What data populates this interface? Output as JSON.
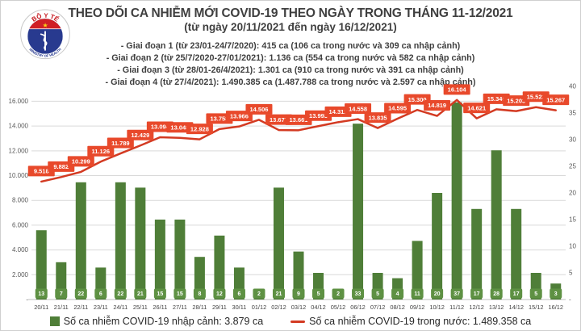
{
  "window": {
    "background": "#ffffff",
    "border_color": "#cfcfcf"
  },
  "logo": {
    "top_text": "BỘ Y TẾ",
    "bottom_text": "MINISTRY OF HEALTH",
    "ring_color": "#c8c8c8",
    "blue": "#283a8f",
    "red": "#d01f26",
    "star_color": "#f7d117"
  },
  "header": {
    "title": "THEO DÕI CA NHIỄM MỚI COVID-19 THEO NGÀY TRONG THÁNG 11-12/2021",
    "subtitle": "(từ ngày 20/11/2021 đến ngày 16/12/2021)",
    "bullets": [
      "- Giai đoạn 1 (từ 23/01-24/7/2020): 415 ca (106 ca trong nước và 309 ca nhập cảnh)",
      "- Giai đoạn 2 (từ 25/7/2020-27/01/2021): 1.136 ca (554 ca trong nước và 582 ca nhập cảnh)",
      "- Giai đoạn 3 (từ 28/01-26/4/2021): 1.301 ca (910 ca trong nước và 391 ca nhập cảnh)",
      "- Giai đoạn 4 (từ 27/4/2021): 1.490.385 ca (1.487.788 ca trong nước và 2.597 ca nhập cảnh)"
    ]
  },
  "chart_data": {
    "type": "combo",
    "title": "THEO DÕI CA NHIỄM MỚI COVID-19 THEO NGÀY TRONG THÁNG 11-12/2021",
    "categories": [
      "20/11",
      "21/11",
      "22/11",
      "23/11",
      "24/11",
      "25/11",
      "26/11",
      "27/11",
      "28/11",
      "29/11",
      "30/11",
      "01/12",
      "02/12",
      "03/12",
      "04/12",
      "05/12",
      "06/12",
      "07/12",
      "08/12",
      "09/12",
      "10/12",
      "11/12",
      "12/12",
      "13/12",
      "14/12",
      "15/12",
      "16/12"
    ],
    "series": [
      {
        "name": "Số ca nhiễm COVID-19 nhập cảnh",
        "type": "bar",
        "axis": "right",
        "color": "#4F7E38",
        "label_bg": "#5E9143",
        "values": [
          13,
          7,
          22,
          6,
          22,
          21,
          15,
          15,
          8,
          12,
          6,
          2,
          21,
          9,
          5,
          2,
          33,
          5,
          4,
          11,
          20,
          37,
          17,
          28,
          17,
          5,
          3
        ]
      },
      {
        "name": "Số ca nhiễm COVID-19 trong nước",
        "type": "line",
        "axis": "left",
        "color": "#D33A22",
        "label_bg": "#E8492B",
        "values": [
          9518,
          9882,
          10299,
          11126,
          11789,
          12429,
          13094,
          13048,
          12928,
          13758,
          13966,
          14506,
          13677,
          13661,
          13993,
          14312,
          14558,
          13835,
          14595,
          15300,
          14819,
          16104,
          14621,
          15349,
          15203,
          15522,
          15267
        ]
      }
    ],
    "left_axis": {
      "tick_labels": [
        "16.000",
        "14.000",
        "12.000",
        "10.000",
        "8.000",
        "6.000",
        "4.000",
        "2.000",
        "-"
      ],
      "max": 16000,
      "step": 2000
    },
    "right_axis": {
      "tick_labels": [
        "40",
        "35",
        "30",
        "25",
        "20",
        "15",
        "10",
        "5",
        "-"
      ],
      "max": 40,
      "step": 5
    },
    "grid": true,
    "gridline_color": "#d9d9d9",
    "baseline_color": "#bfbfbf",
    "axis_text_color": "#595959",
    "date_text_color": "#404040",
    "legend_position": "bottom"
  },
  "legend": {
    "imported_label": "Số ca nhiễm COVID-19 nhập cảnh: 3.879 ca",
    "domestic_label": "Số ca nhiễm COVID-19 trong nước: 1.489.358 ca"
  }
}
